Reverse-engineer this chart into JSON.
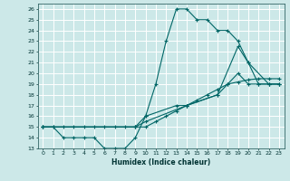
{
  "xlabel": "Humidex (Indice chaleur)",
  "xlim": [
    -0.5,
    23.5
  ],
  "ylim": [
    13,
    26.5
  ],
  "yticks": [
    13,
    14,
    15,
    16,
    17,
    18,
    19,
    20,
    21,
    22,
    23,
    24,
    25,
    26
  ],
  "xticks": [
    0,
    1,
    2,
    3,
    4,
    5,
    6,
    7,
    8,
    9,
    10,
    11,
    12,
    13,
    14,
    15,
    16,
    17,
    18,
    19,
    20,
    21,
    22,
    23
  ],
  "bg_color": "#cce8e8",
  "grid_color": "#ffffff",
  "line_color": "#006666",
  "lines": [
    {
      "x": [
        0,
        1,
        2,
        3,
        4,
        5,
        6,
        7,
        8,
        9,
        10,
        11,
        12,
        13,
        14,
        15,
        16,
        17,
        18,
        19,
        20,
        21,
        22,
        23
      ],
      "y": [
        15,
        15,
        14,
        14,
        14,
        14,
        13,
        13,
        13,
        14,
        16,
        19,
        23,
        26,
        26,
        25,
        25,
        24,
        24,
        23,
        21,
        19,
        19,
        19
      ]
    },
    {
      "x": [
        0,
        1,
        2,
        3,
        4,
        5,
        6,
        7,
        8,
        9,
        10,
        11,
        12,
        13,
        14,
        15,
        16,
        17,
        18,
        19,
        20,
        21,
        22,
        23
      ],
      "y": [
        15,
        15,
        15,
        15,
        15,
        15,
        15,
        15,
        15,
        15,
        15,
        15.5,
        16,
        16.5,
        17,
        17.5,
        18,
        18.5,
        19,
        19.2,
        19.4,
        19.5,
        19.5,
        19.5
      ]
    },
    {
      "x": [
        0,
        9,
        10,
        14,
        17,
        19,
        20,
        22,
        23
      ],
      "y": [
        15,
        15,
        15.5,
        17,
        18,
        22.5,
        21,
        19,
        19
      ]
    },
    {
      "x": [
        0,
        9,
        10,
        13,
        14,
        17,
        18,
        19,
        20,
        21,
        22,
        23
      ],
      "y": [
        15,
        15,
        16,
        17,
        17,
        18,
        19,
        20,
        19,
        19,
        19,
        19
      ]
    }
  ]
}
